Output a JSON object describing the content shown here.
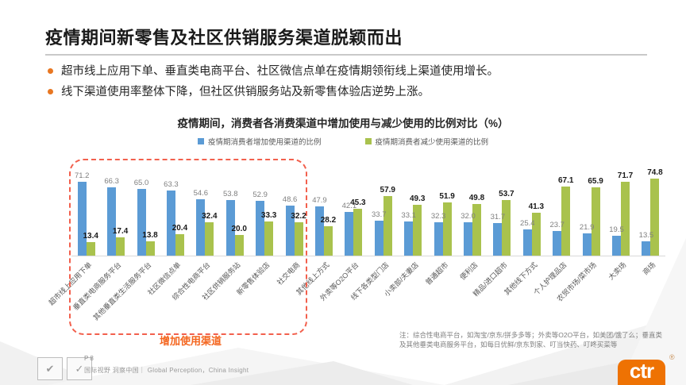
{
  "slide": {
    "title": "疫情期间新零售及社区供销服务渠道脱颖而出",
    "bullets": [
      "超市线上应用下单、垂直类电商平台、社区微信点单在疫情期领衔线上渠道使用增长。",
      "线下渠道使用率整体下降，但社区供销服务站及新零售体验店逆势上涨。"
    ]
  },
  "chart_data": {
    "type": "bar",
    "title": "疫情期间，消费者各消费渠道中增加使用与减少使用的比例对比（%）",
    "categories": [
      "超市线上应用下单",
      "垂直类电商服务平台",
      "其他垂直类生活服务平台",
      "社区微信点单",
      "综合性电商平台",
      "社区供销服务站",
      "新零售体验店",
      "社交电商",
      "其他线上方式",
      "外卖等O2O平台",
      "线下各类型门店",
      "小卖部/夫妻店",
      "普通超市",
      "便利店",
      "精品/进口超市",
      "其他线下方式",
      "个人护理品店",
      "农贸市场/菜市场",
      "大卖场",
      "商场"
    ],
    "series": [
      {
        "name": "疫情期消费者增加使用渠道的比例",
        "color": "#5B9BD5",
        "values": [
          71.2,
          66.3,
          65.0,
          63.3,
          54.6,
          53.8,
          52.9,
          48.6,
          47.9,
          42.1,
          33.7,
          33.1,
          32.3,
          32.0,
          31.7,
          25.4,
          23.7,
          21.9,
          19.5,
          13.5
        ]
      },
      {
        "name": "疫情期消费者减少使用渠道的比例",
        "color": "#A9C24D",
        "values": [
          13.4,
          17.4,
          13.8,
          20.4,
          32.4,
          20.0,
          33.3,
          32.2,
          28.2,
          45.3,
          57.9,
          49.3,
          51.9,
          49.8,
          53.7,
          41.3,
          67.1,
          65.9,
          71.7,
          74.8
        ]
      }
    ],
    "ylim": [
      0,
      80
    ],
    "grid": false,
    "legend_position": "top",
    "highlight_box": {
      "category_range": [
        0,
        7
      ],
      "label": "增加使用渠道"
    }
  },
  "note": "注：综合性电商平台，如淘宝/京东/拼多多等；外卖等O2O平台，如美团/饿了么；垂直类及其他垂类电商服务平台，如每日优鲜/京东到家、叮当快药、叮咚买菜等",
  "footer": {
    "page": "P 8",
    "tagline": "国际视野 洞察中国｜ Global Perception，China Insight",
    "logo_text": "ctr",
    "registered_mark": "®",
    "cert_icon_1": "✔",
    "cert_icon_2": "✓"
  },
  "colors": {
    "accent_orange": "#E87722",
    "increase_blue": "#5B9BD5",
    "decrease_green": "#A9C24D",
    "highlight_dash": "#F2604D",
    "annotation_orange": "#F4651E",
    "logo_orange": "#EE7203"
  }
}
